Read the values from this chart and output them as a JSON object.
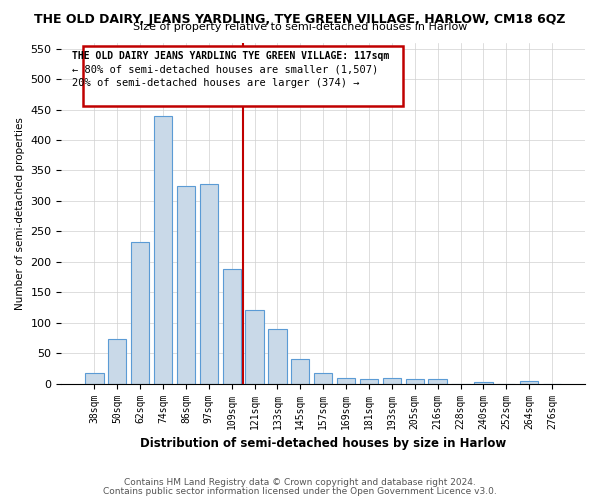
{
  "title": "THE OLD DAIRY, JEANS YARDLING, TYE GREEN VILLAGE, HARLOW, CM18 6QZ",
  "subtitle": "Size of property relative to semi-detached houses in Harlow",
  "xlabel": "Distribution of semi-detached houses by size in Harlow",
  "ylabel": "Number of semi-detached properties",
  "footer1": "Contains HM Land Registry data © Crown copyright and database right 2024.",
  "footer2": "Contains public sector information licensed under the Open Government Licence v3.0.",
  "categories": [
    "38sqm",
    "50sqm",
    "62sqm",
    "74sqm",
    "86sqm",
    "97sqm",
    "109sqm",
    "121sqm",
    "133sqm",
    "145sqm",
    "157sqm",
    "169sqm",
    "181sqm",
    "193sqm",
    "205sqm",
    "216sqm",
    "228sqm",
    "240sqm",
    "252sqm",
    "264sqm",
    "276sqm"
  ],
  "values": [
    18,
    73,
    233,
    440,
    325,
    328,
    188,
    121,
    90,
    41,
    18,
    10,
    8,
    10,
    8,
    8,
    0,
    3,
    0,
    5,
    0
  ],
  "bar_color": "#c9d9e8",
  "bar_edge_color": "#5b9bd5",
  "vline_x_index": 7,
  "vline_color": "#c00000",
  "annotation_box_text1": "THE OLD DAIRY JEANS YARDLING TYE GREEN VILLAGE: 117sqm",
  "annotation_box_text2": "← 80% of semi-detached houses are smaller (1,507)",
  "annotation_box_text3": "20% of semi-detached houses are larger (374) →",
  "box_edge_color": "#c00000",
  "ylim": [
    0,
    560
  ],
  "yticks": [
    0,
    50,
    100,
    150,
    200,
    250,
    300,
    350,
    400,
    450,
    500,
    550
  ]
}
